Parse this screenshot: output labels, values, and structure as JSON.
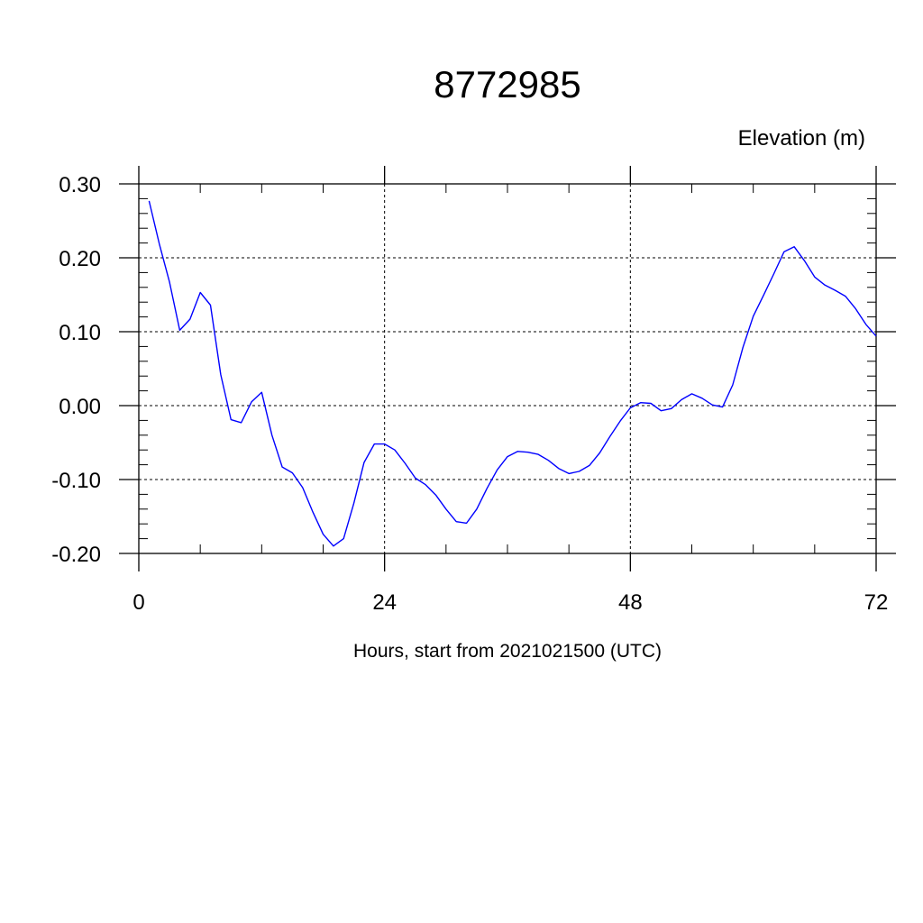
{
  "chart_data": {
    "type": "line",
    "title": "8772985",
    "subtitle": "Elevation (m)",
    "xlabel": "Hours, start from 2021021500 (UTC)",
    "ylabel": "",
    "xlim": [
      0,
      72
    ],
    "ylim": [
      -0.2,
      0.3
    ],
    "x_ticks": [
      0,
      24,
      48,
      72
    ],
    "x_tick_labels": [
      "0",
      "24",
      "48",
      "72"
    ],
    "y_ticks": [
      0.3,
      0.2,
      0.1,
      0.0,
      -0.1,
      -0.2
    ],
    "y_tick_labels": [
      "0.30",
      "0.20",
      "0.10",
      "0.00",
      "-0.10",
      "-0.20"
    ],
    "grid": true,
    "grid_style": "dashed",
    "series": [
      {
        "color": "#0000ff",
        "x": [
          1,
          2,
          3,
          4,
          5,
          6,
          7,
          8,
          9,
          10,
          11,
          12,
          13,
          14,
          15,
          16,
          17,
          18,
          19,
          20,
          21,
          22,
          23,
          24,
          25,
          26,
          27,
          28,
          29,
          30,
          31,
          32,
          33,
          34,
          35,
          36,
          37,
          38,
          39,
          40,
          41,
          42,
          43,
          44,
          45,
          46,
          47,
          48,
          49,
          50,
          51,
          52,
          53,
          54,
          55,
          56,
          57,
          58,
          59,
          60,
          61,
          62,
          63,
          64,
          65,
          66,
          67,
          68,
          69,
          70,
          71,
          72
        ],
        "values": [
          0.277,
          0.219,
          0.167,
          0.102,
          0.117,
          0.153,
          0.136,
          0.042,
          -0.019,
          -0.023,
          0.005,
          0.018,
          -0.04,
          -0.083,
          -0.091,
          -0.111,
          -0.144,
          -0.174,
          -0.19,
          -0.18,
          -0.132,
          -0.077,
          -0.052,
          -0.052,
          -0.06,
          -0.078,
          -0.098,
          -0.107,
          -0.121,
          -0.14,
          -0.157,
          -0.159,
          -0.14,
          -0.112,
          -0.087,
          -0.069,
          -0.062,
          -0.063,
          -0.066,
          -0.074,
          -0.085,
          -0.092,
          -0.089,
          -0.081,
          -0.064,
          -0.042,
          -0.021,
          -0.003,
          0.004,
          0.003,
          -0.007,
          -0.004,
          0.008,
          0.016,
          0.01,
          0.001,
          -0.002,
          0.028,
          0.079,
          0.121,
          0.149,
          0.178,
          0.208,
          0.215,
          0.196,
          0.174,
          0.163,
          0.156,
          0.148,
          0.131,
          0.11,
          0.094
        ]
      }
    ]
  }
}
